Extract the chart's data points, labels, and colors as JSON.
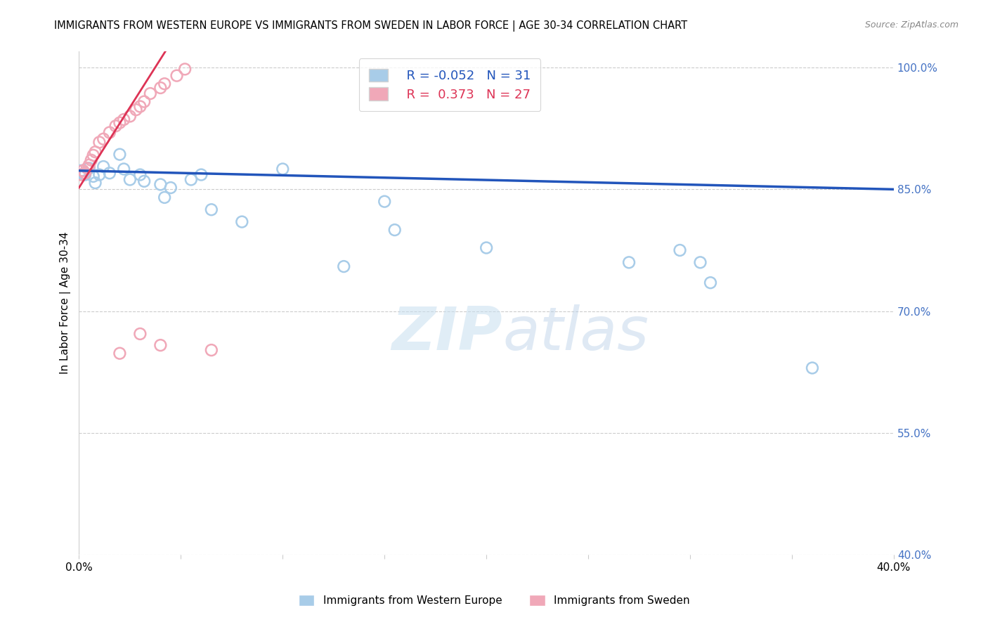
{
  "title": "IMMIGRANTS FROM WESTERN EUROPE VS IMMIGRANTS FROM SWEDEN IN LABOR FORCE | AGE 30-34 CORRELATION CHART",
  "source": "Source: ZipAtlas.com",
  "ylabel": "In Labor Force | Age 30-34",
  "watermark_zip": "ZIP",
  "watermark_atlas": "atlas",
  "xlim": [
    0.0,
    0.4
  ],
  "ylim": [
    0.4,
    1.02
  ],
  "blue_R": -0.052,
  "blue_N": 31,
  "pink_R": 0.373,
  "pink_N": 27,
  "blue_color": "#a8cce8",
  "pink_color": "#f0a8b8",
  "blue_line_color": "#2255bb",
  "pink_line_color": "#dd3355",
  "ytick_right_labels": [
    "100.0%",
    "85.0%",
    "70.0%",
    "55.0%",
    "40.0%"
  ],
  "ytick_right_values": [
    1.0,
    0.85,
    0.7,
    0.55,
    0.4
  ],
  "blue_x": [
    0.001,
    0.002,
    0.003,
    0.005,
    0.007,
    0.008,
    0.01,
    0.012,
    0.02,
    0.022,
    0.03,
    0.032,
    0.04,
    0.042,
    0.055,
    0.06,
    0.1,
    0.15,
    0.155,
    0.2,
    0.27,
    0.295,
    0.305,
    0.31,
    0.36,
    0.015,
    0.025,
    0.045,
    0.065,
    0.08,
    0.13
  ],
  "blue_y": [
    0.873,
    0.869,
    0.868,
    0.876,
    0.866,
    0.858,
    0.868,
    0.878,
    0.893,
    0.875,
    0.868,
    0.86,
    0.856,
    0.84,
    0.862,
    0.868,
    0.875,
    0.835,
    0.8,
    0.778,
    0.76,
    0.775,
    0.76,
    0.735,
    0.63,
    0.87,
    0.862,
    0.852,
    0.825,
    0.81,
    0.755
  ],
  "pink_x": [
    0.001,
    0.002,
    0.003,
    0.004,
    0.005,
    0.006,
    0.007,
    0.008,
    0.01,
    0.012,
    0.015,
    0.018,
    0.02,
    0.022,
    0.025,
    0.028,
    0.03,
    0.032,
    0.035,
    0.04,
    0.042,
    0.048,
    0.052,
    0.02,
    0.03,
    0.04,
    0.065
  ],
  "pink_y": [
    0.868,
    0.873,
    0.87,
    0.876,
    0.88,
    0.886,
    0.892,
    0.896,
    0.908,
    0.912,
    0.92,
    0.928,
    0.932,
    0.936,
    0.94,
    0.948,
    0.952,
    0.958,
    0.968,
    0.975,
    0.98,
    0.99,
    0.998,
    0.648,
    0.672,
    0.658,
    0.652
  ]
}
